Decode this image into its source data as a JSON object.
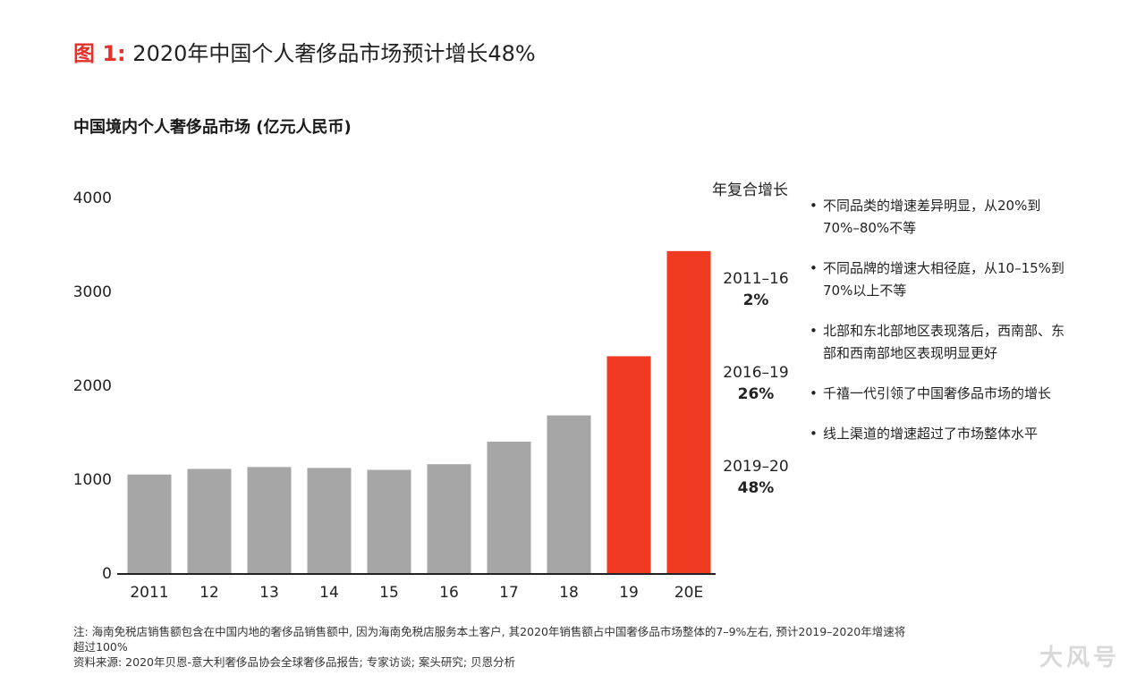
{
  "figure": {
    "prefix": "图 1:",
    "title": "2020年中国个人奢侈品市场预计增长48%"
  },
  "subtitle": "中国境内个人奢侈品市场 (亿元人民币)",
  "chart_data": {
    "type": "bar",
    "categories": [
      "2011",
      "12",
      "13",
      "14",
      "15",
      "16",
      "17",
      "18",
      "19",
      "20E"
    ],
    "values": [
      1050,
      1110,
      1130,
      1120,
      1100,
      1160,
      1400,
      1680,
      2310,
      3430
    ],
    "highlight": [
      false,
      false,
      false,
      false,
      false,
      false,
      false,
      false,
      true,
      true
    ],
    "ylim": [
      0,
      4000
    ],
    "yticks": [
      0,
      1000,
      2000,
      3000,
      4000
    ],
    "colors": {
      "base": "#a6a6a6",
      "highlight": "#f03a22"
    }
  },
  "cagr": {
    "heading": "年复合增长",
    "items": [
      {
        "period": "2011–16",
        "value": "2%"
      },
      {
        "period": "2016–19",
        "value": "26%"
      },
      {
        "period": "2019–20",
        "value": "48%"
      }
    ]
  },
  "bullets": [
    "不同品类的增速差异明显，从20%到70%–80%不等",
    "不同品牌的增速大相径庭，从10–15%到70%以上不等",
    "北部和东北部地区表现落后，西南部、东部和西南部地区表现明显更好",
    "千禧一代引领了中国奢侈品市场的增长",
    "线上渠道的增速超过了市场整体水平"
  ],
  "footnotes": {
    "note": "注: 海南免税店销售额包含在中国内地的奢侈品销售额中, 因为海南免税店服务本土客户, 其2020年销售额占中国奢侈品市场整体的7–9%左右, 预计2019–2020年增速将",
    "note_cont": "超过100%",
    "source": "资料来源: 2020年贝恩-意大利奢侈品协会全球奢侈品报告; 专家访谈; 案头研究; 贝恩分析"
  },
  "watermark": "大风号"
}
